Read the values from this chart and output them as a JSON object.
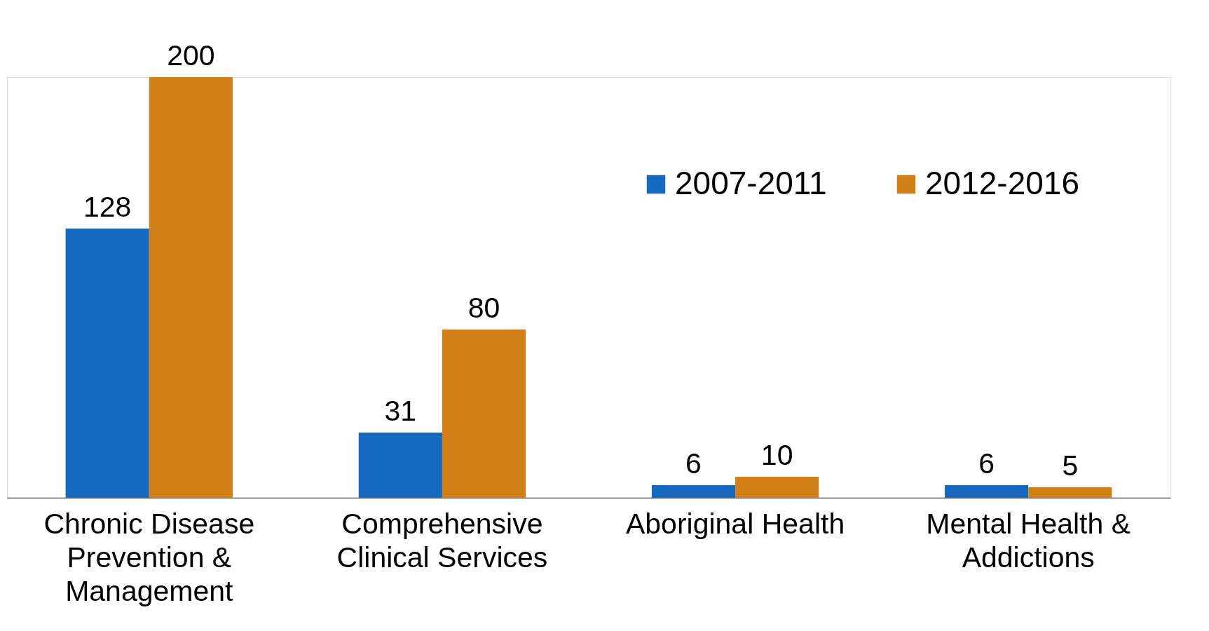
{
  "chart_data": {
    "type": "bar",
    "categories": [
      "Chronic Disease Prevention & Management",
      "Comprehensive Clinical Services",
      "Aboriginal Health",
      "Mental Health & Addictions"
    ],
    "series": [
      {
        "name": "2007-2011",
        "color": "#1769c0",
        "values": [
          128,
          31,
          6,
          6
        ]
      },
      {
        "name": "2012-2016",
        "color": "#d18017",
        "values": [
          200,
          80,
          10,
          5
        ]
      }
    ],
    "data_labels": true,
    "legend": "top right",
    "tick_labels": "x",
    "grid": false
  }
}
